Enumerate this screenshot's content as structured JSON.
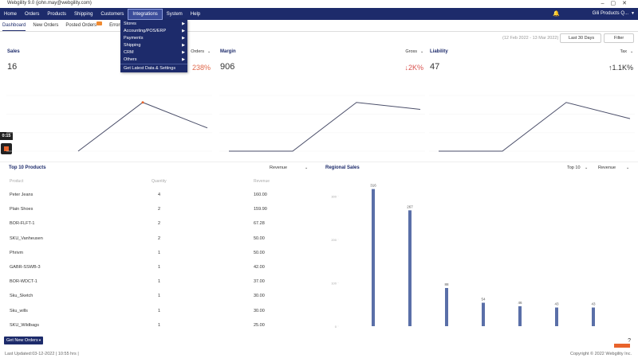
{
  "window": {
    "title": "Webgility 9.0 (john.may@webgility.com)"
  },
  "nav": {
    "items": [
      "Home",
      "Orders",
      "Products",
      "Shipping",
      "Customers",
      "Integrations",
      "System",
      "Help"
    ],
    "active": "Integrations",
    "account": "Gili Products Q..."
  },
  "tabs": {
    "items": [
      "Dashboard",
      "New Orders",
      "Posted Orders",
      "Errors"
    ],
    "active": "Dashboard"
  },
  "menu": {
    "items": [
      "Stores",
      "Accounting/POS/ERP",
      "Payments",
      "Shipping",
      "CRM",
      "Others",
      "Get Latest Data & Settings"
    ]
  },
  "toolbar": {
    "date_range": "(12 Feb 2022 - 13 Mar 2022)",
    "period": "Last 30 Days",
    "filter": "Filter"
  },
  "timer": "0:15",
  "cards": [
    {
      "title": "Sales",
      "value": "16",
      "selector": "Orders",
      "change": "238%",
      "trend": [
        0,
        10.5,
        5
      ],
      "ylim": [
        0,
        12
      ]
    },
    {
      "title": "Margin",
      "value": "906",
      "selector": "Gross",
      "change": "↓2K%",
      "trend": [
        0,
        0,
        10.5,
        9
      ],
      "ylim": [
        0,
        12
      ]
    },
    {
      "title": "Liability",
      "value": "47",
      "selector": "Tax",
      "change": "↑1.1K%",
      "trend": [
        0,
        0,
        10.5,
        7
      ],
      "ylim": [
        0,
        12
      ]
    }
  ],
  "products": {
    "title": "Top 10 Products",
    "selector": "Revenue",
    "columns": [
      "Product",
      "Quantity",
      "Revenue"
    ],
    "rows": [
      [
        "Peter Jeans",
        "4",
        "160.00"
      ],
      [
        "Plain Shoes",
        "2",
        "159.90"
      ],
      [
        "BOR-FLFT-1",
        "2",
        "67.28"
      ],
      [
        "SKU_Vanheusen",
        "2",
        "50.00"
      ],
      [
        "Phrivm",
        "1",
        "50.00"
      ],
      [
        "GABR-SSWB-3",
        "1",
        "42.00"
      ],
      [
        "BOR-WDCT-1",
        "1",
        "37.00"
      ],
      [
        "Sku_Sketch",
        "1",
        "30.00"
      ],
      [
        "Sku_wills",
        "1",
        "30.00"
      ],
      [
        "SKU_Wildbags",
        "1",
        "25.00"
      ]
    ]
  },
  "regional": {
    "title": "Regional Sales",
    "selectors": [
      "Top 10",
      "Revenue"
    ],
    "type": "bar",
    "values": [
      316,
      267,
      88,
      54,
      46,
      43,
      43
    ],
    "ylim": [
      0,
      330
    ],
    "yticks": [
      0,
      100,
      200,
      300
    ],
    "color": "#5a6fa8"
  },
  "footer": {
    "button": "Get New Orders",
    "updated": "Last Updated:03-12-2022 | 10:55 hrs |",
    "copyright": "Copyright © 2022 Webgility Inc."
  }
}
